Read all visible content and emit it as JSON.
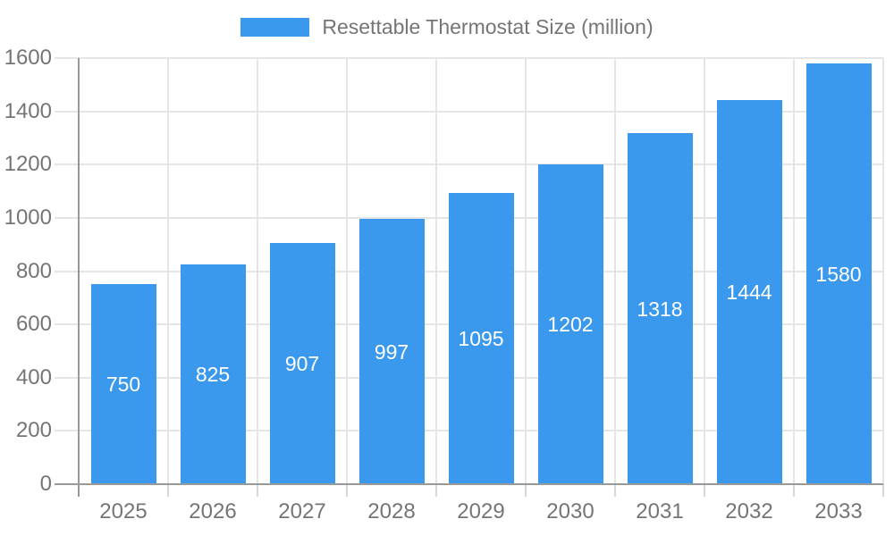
{
  "legend": {
    "label": "Resettable Thermostat Size (million)"
  },
  "colors": {
    "bar": "#3A99EC",
    "axis_line": "#999999",
    "gridline": "#E5E5E5",
    "tick": "#D6D6D6",
    "axis_label": "#757575",
    "legend_label": "#757575",
    "value_label": "#FFFFFF"
  },
  "chart_data": {
    "type": "bar",
    "title": "",
    "legend_entries": [
      "Resettable Thermostat Size (million)"
    ],
    "legend_position": "top-center",
    "categories": [
      "2025",
      "2026",
      "2027",
      "2028",
      "2029",
      "2030",
      "2031",
      "2032",
      "2033"
    ],
    "values": [
      750,
      825,
      907,
      997,
      1095,
      1202,
      1318,
      1444,
      1580
    ],
    "xlabel": "",
    "ylabel": "",
    "ylim": [
      0,
      1600
    ],
    "ytick_step": 200,
    "ytick_labels": [
      "0",
      "200",
      "400",
      "600",
      "800",
      "1000",
      "1200",
      "1400",
      "1600"
    ],
    "grid": true,
    "bar_value_labels": true
  }
}
